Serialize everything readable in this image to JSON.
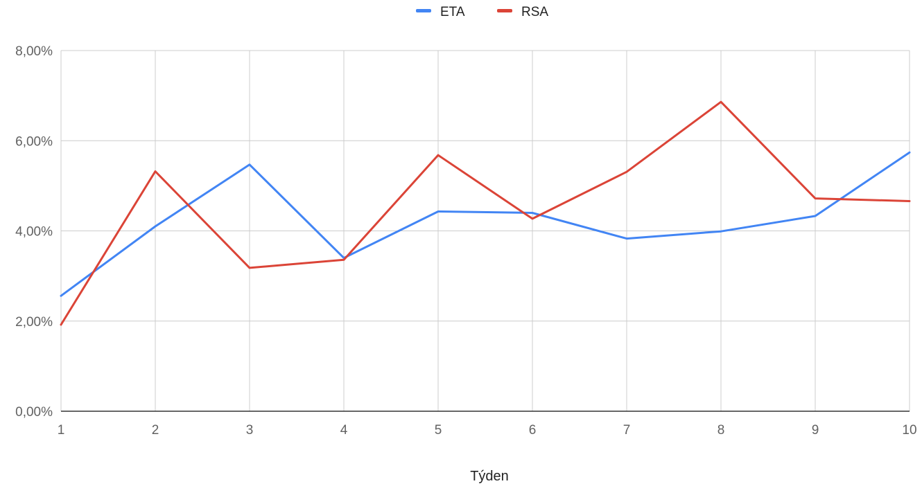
{
  "chart_data": {
    "type": "line",
    "title": "",
    "xlabel": "Týden",
    "ylabel": "",
    "x": [
      1,
      2,
      3,
      4,
      5,
      6,
      7,
      8,
      9,
      10
    ],
    "ylim": [
      0,
      0.08
    ],
    "yticks": [
      0,
      0.02,
      0.04,
      0.06,
      0.08
    ],
    "ytick_labels": [
      "0,00%",
      "2,00%",
      "4,00%",
      "6,00%",
      "8,00%"
    ],
    "grid": true,
    "legend_position": "top",
    "series": [
      {
        "name": "ETA",
        "color": "#4285f4",
        "values": [
          0.0256,
          0.041,
          0.0547,
          0.034,
          0.0443,
          0.044,
          0.0383,
          0.0399,
          0.0433,
          0.0574
        ]
      },
      {
        "name": "RSA",
        "color": "#db4437",
        "values": [
          0.0192,
          0.0532,
          0.0318,
          0.0336,
          0.0568,
          0.0427,
          0.0531,
          0.0686,
          0.0472,
          0.0466
        ]
      }
    ]
  }
}
